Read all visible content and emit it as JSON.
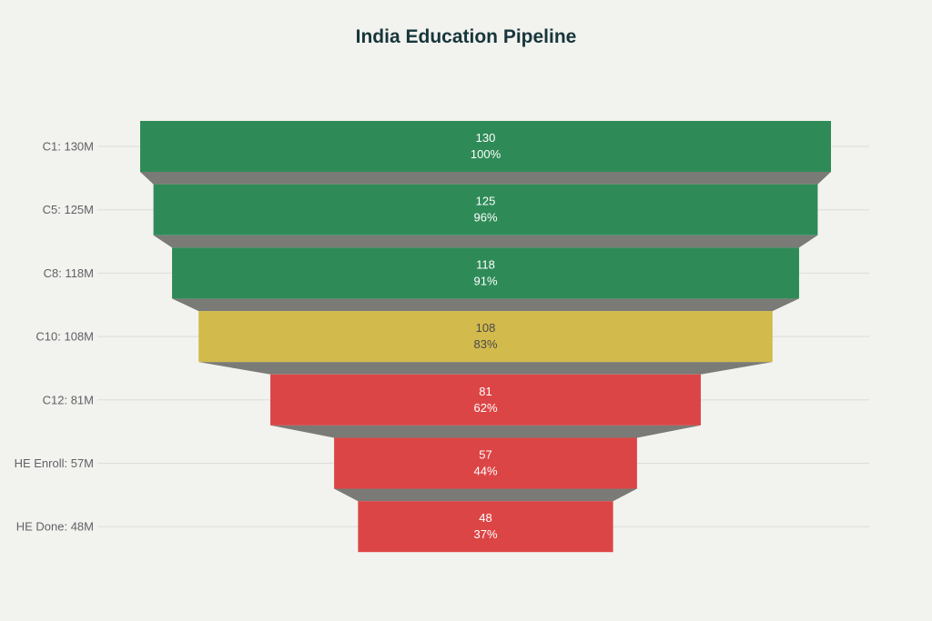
{
  "chart_data": {
    "type": "funnel",
    "title": "India Education Pipeline",
    "xlabel": "",
    "ylabel": "",
    "categories": [
      "C1: 130M",
      "C5: 125M",
      "C8: 118M",
      "C10: 108M",
      "C12: 81M",
      "HE Enroll: 57M",
      "HE Done: 48M"
    ],
    "stages": [
      "C1",
      "C5",
      "C8",
      "C10",
      "C12",
      "HE Enroll",
      "HE Done"
    ],
    "values": [
      130,
      125,
      118,
      108,
      81,
      57,
      48
    ],
    "percent_of_initial": [
      "100%",
      "96%",
      "91%",
      "83%",
      "62%",
      "44%",
      "37%"
    ],
    "units": "millions",
    "colors": [
      "#2e8b57",
      "#2e8b57",
      "#2e8b57",
      "#d2ba4c",
      "#dc4545",
      "#dc4545",
      "#dc4545"
    ],
    "label_colors": [
      "#ffffff",
      "#ffffff",
      "#ffffff",
      "#4a4a4a",
      "#ffffff",
      "#ffffff",
      "#ffffff"
    ],
    "connector_color": "#7a7a76",
    "grid": true,
    "legend": "none"
  },
  "style": {
    "background": "#f2f2ee",
    "gridline": "#dcdcd8",
    "title_color": "#17363b",
    "axis_label_color": "#5f6266"
  }
}
